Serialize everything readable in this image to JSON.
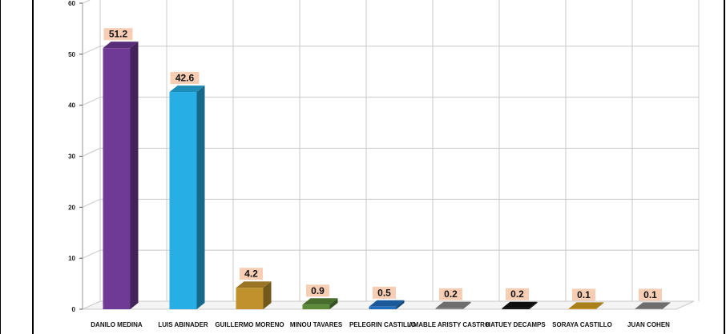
{
  "chart_data": {
    "type": "bar",
    "categories": [
      "DANILO MEDINA",
      "LUIS ABINADER",
      "GUILLERMO MORENO",
      "MINOU TAVARES",
      "PELEGRIN CASTILLO",
      "AMABLE ARISTY CASTRO",
      "HATUEY DECAMPS",
      "SORAYA CASTILLO",
      "JUAN COHEN"
    ],
    "values": [
      51.2,
      42.6,
      4.2,
      0.9,
      0.5,
      0.2,
      0.2,
      0.1,
      0.1
    ],
    "data_labels": [
      "51.2",
      "42.6",
      "4.2",
      "0.9",
      "0.5",
      "0.2",
      "0.2",
      "0.1",
      "0.1"
    ],
    "yticks": [
      "0",
      "10",
      "20",
      "30",
      "40",
      "50",
      "60"
    ],
    "ylim": [
      0,
      60
    ],
    "colors": [
      "#6f3a96",
      "#27aee5",
      "#c0922e",
      "#5a8a3a",
      "#1f6fc0",
      "#8a8a8a",
      "#111111",
      "#d4a020",
      "#8a8a8a"
    ],
    "label_background": "#f7cdb3",
    "grid": true,
    "style": "3d",
    "title": "",
    "xlabel": "",
    "ylabel": ""
  }
}
